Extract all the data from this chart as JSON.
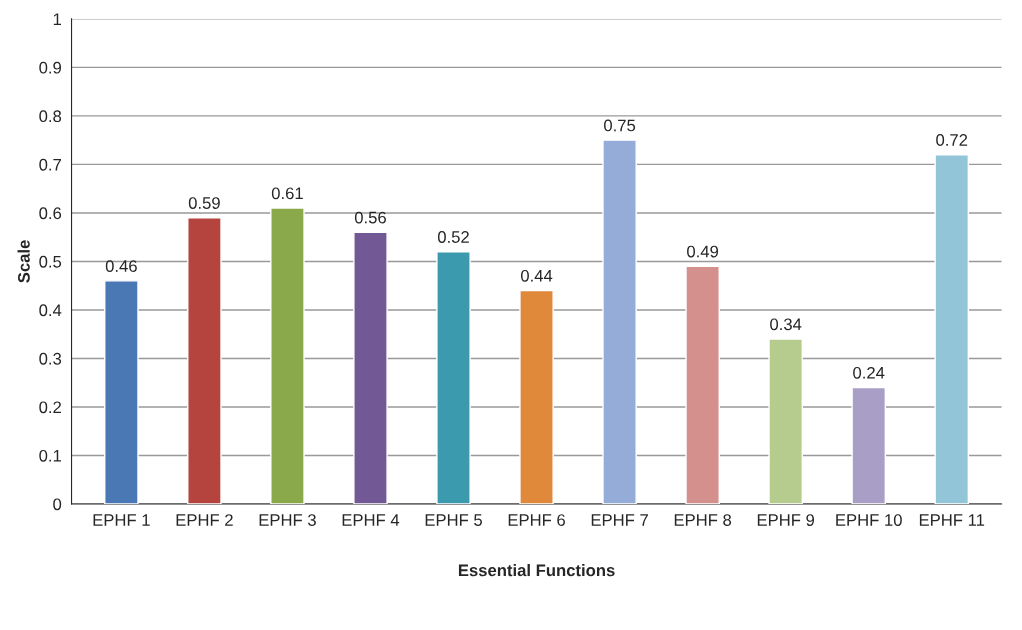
{
  "chart_data": {
    "type": "bar",
    "xlabel": "Essential Functions",
    "ylabel": "Scale",
    "categories": [
      "EPHF 1",
      "EPHF 2",
      "EPHF 3",
      "EPHF 4",
      "EPHF 5",
      "EPHF 6",
      "EPHF 7",
      "EPHF 8",
      "EPHF 9",
      "EPHF 10",
      "EPHF 11"
    ],
    "values": [
      0.46,
      0.59,
      0.61,
      0.56,
      0.52,
      0.44,
      0.75,
      0.49,
      0.34,
      0.24,
      0.72
    ],
    "colors": [
      "#4a78b4",
      "#b5443f",
      "#89a94a",
      "#735896",
      "#3b9aae",
      "#e0893a",
      "#95acd8",
      "#d4908d",
      "#b6cc8e",
      "#a99ec6",
      "#93c5d8"
    ],
    "ylim": [
      0,
      1
    ],
    "yticks": [
      0,
      0.1,
      0.2,
      0.3,
      0.4,
      0.5,
      0.6,
      0.7,
      0.8,
      0.9,
      1
    ],
    "grid": "y",
    "data_labels": true
  }
}
